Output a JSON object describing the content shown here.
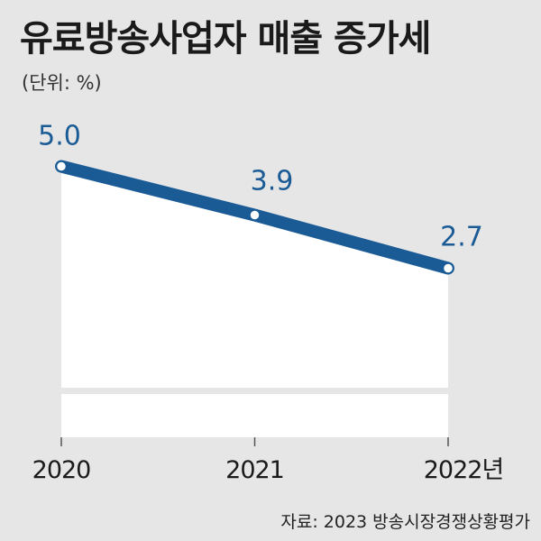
{
  "title": "유료방송사업자 매출 증가세",
  "unit": "(단위: %)",
  "source": "자료: 2023 방송시장경쟁상황평가",
  "colors": {
    "line": "#1a5b96",
    "background": "#e6e6e6",
    "plot_area": "#ffffff"
  },
  "chart_data": {
    "type": "line",
    "categories": [
      "2020",
      "2021",
      "2022년"
    ],
    "values": [
      5.0,
      3.9,
      2.7
    ],
    "value_labels": [
      "5.0",
      "3.9",
      "2.7"
    ],
    "title": "유료방송사업자 매출 증가세",
    "ylabel": "(단위: %)",
    "xlabel": "",
    "ylim": [
      0,
      5.5
    ],
    "axis_break": true,
    "grid": false,
    "legend": "none"
  }
}
